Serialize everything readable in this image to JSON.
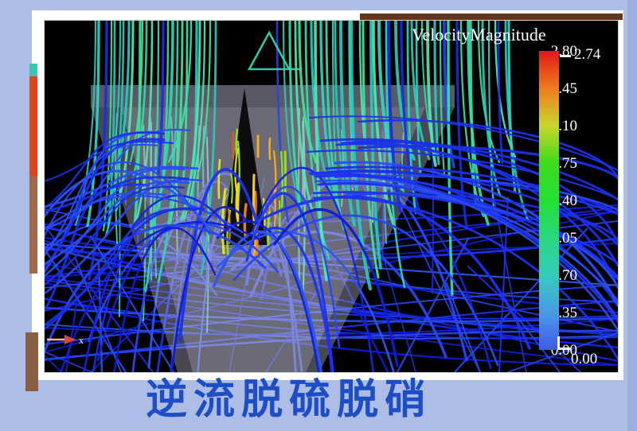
{
  "background": {
    "page_bg": "#aebde6",
    "viz_bg": "#000000",
    "frame_color": "#ffffff"
  },
  "colorbar": {
    "title": "VelocityMagnitude",
    "tick_labels": [
      "2.80",
      "2.45",
      "2.10",
      "1.75",
      "1.40",
      "1.05",
      "0.70",
      "0.35",
      "0.00"
    ],
    "max_marker": "2.74",
    "min_marker": "0.00",
    "gradient": [
      "#e11717",
      "#ef7c1e",
      "#c8d62a",
      "#3fdb1d",
      "#23e135",
      "#2ad77f",
      "#33cdbb",
      "#4a9ae5",
      "#3f5ae8"
    ]
  },
  "axis_indicator": {
    "label": "x"
  },
  "caption": {
    "text": "逆流脱硫脱硝",
    "color": "#1e4ec6"
  },
  "chart_data": {
    "type": "streamline-flow",
    "title": "VelocityMagnitude",
    "caption": "逆流脱硫脱硝",
    "colorbar": {
      "label": "VelocityMagnitude",
      "range": [
        0.0,
        2.8
      ],
      "ticks": [
        2.8,
        2.45,
        2.1,
        1.75,
        1.4,
        1.05,
        0.7,
        0.35,
        0.0
      ],
      "tick_step": 0.35,
      "data_max": 2.74,
      "data_min": 0.0,
      "colormap": "rainbow: red (2.80) -> orange -> yellow-green -> green (1.40) -> cyan (0.70) -> blue (0.00)"
    },
    "legend_position": "right",
    "description": "3D CFD streamline rendering on black background: teal/green vertical streamline curtains enter from the top, accelerate (yellow/orange/red) at the center above a translucent gray conical funnel with a dark triangular notch, and fan out as blue arcing streamlines toward the sides and a dense blue mesh at the bottom; small red x-axis triad at lower left"
  },
  "viz": {
    "palettes": {
      "teals": [
        "#2fd8b0",
        "#36e0ae",
        "#28cabe",
        "#40e49c",
        "#33d6c4",
        "#56e6b2"
      ],
      "blueAccents": [
        "#1c2cec",
        "#2244f0",
        "#1530dd"
      ],
      "blues": [
        "#1424e0",
        "#1c33ee",
        "#2646f2",
        "#0f1ed0",
        "#2c55f0"
      ],
      "blues2": [
        "#1c33ee",
        "#2a4cf2",
        "#1830e6"
      ],
      "hots": [
        "#ffd91c",
        "#ffb014",
        "#ff8612",
        "#fc5210",
        "#e8e81e",
        "#9ae61e"
      ]
    },
    "counts": {
      "mesh": 26,
      "meshDiag": 22,
      "deepVerticals": 26,
      "backArcs": 14,
      "curtainsLeft": 26,
      "curtainsRight": 44,
      "burst": 26,
      "frontArcs": 20,
      "rightFan": 24,
      "leftFan": 16
    }
  }
}
